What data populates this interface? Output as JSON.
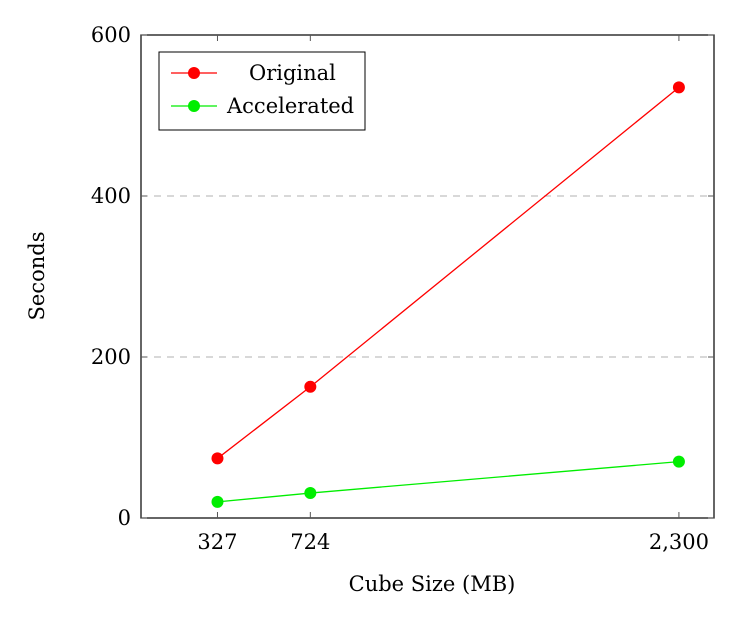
{
  "chart_data": {
    "type": "line",
    "title": "",
    "xlabel": "Cube Size (MB)",
    "ylabel": "Seconds",
    "x": [
      327,
      724,
      2300
    ],
    "x_tick_labels": [
      "327",
      "724",
      "2,300"
    ],
    "xlim": [
      0,
      2450
    ],
    "ylim": [
      0,
      600
    ],
    "y_ticks": [
      0,
      200,
      400,
      600
    ],
    "y_tick_labels": [
      "0",
      "200",
      "400",
      "600"
    ],
    "grid": "horizontal dashed at y ticks",
    "legend_position": "top-left",
    "series": [
      {
        "name": "Original",
        "color": "#ff0000",
        "values": [
          74,
          163,
          535
        ]
      },
      {
        "name": "Accelerated",
        "color": "#00ee00",
        "values": [
          20,
          31,
          70
        ]
      }
    ]
  }
}
